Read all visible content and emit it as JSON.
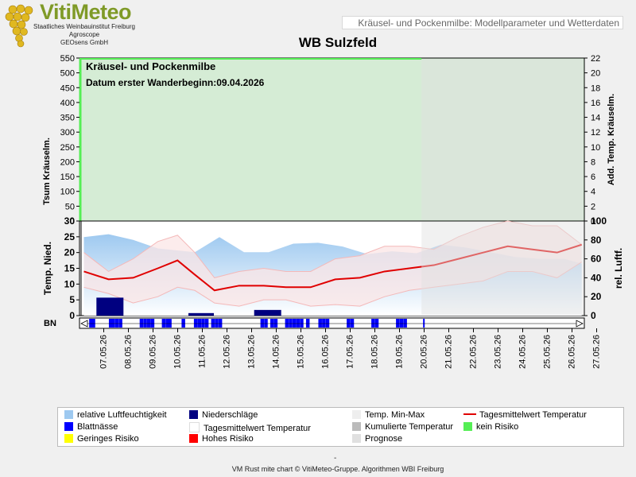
{
  "header": {
    "brand": "VitiMeteo",
    "subtitle_lines": [
      "Staatliches Weinbauinstitut Freiburg",
      "Agroscope",
      "GEOsens GmbH"
    ],
    "box_text": "Kräusel- und Pockenmilbe: Modellparameter und Wetterdaten",
    "station": "WB Sulzfeld"
  },
  "footer": {
    "dash": "-",
    "credit": "VM Rust mite chart © VitiMeteo-Gruppe. Algorithmen WBI Freiburg"
  },
  "colors": {
    "humidity": "#9ec9f0",
    "precip": "#000080",
    "leaf_wet": "#0000ff",
    "temp_mean": "#e00000",
    "temp_band": "#f4b8b8",
    "no_risk": "#55ee55",
    "low_risk": "#ffff00",
    "high_risk": "#ff0000",
    "forecast": "#e0e0e0",
    "cumulative": "#bbbbbb"
  },
  "chart_data": [
    {
      "type": "area",
      "id": "upper",
      "title": "Kräusel- und Pockenmilbe",
      "annotation": "Datum erster Wanderbeginn:09.04.2026",
      "ylabel_left": "Tsum Kräuselm.",
      "ylabel_right": "Add. Temp. Kräuselm.",
      "ylim_left": [
        0,
        550
      ],
      "yticks_left": [
        0,
        50,
        100,
        150,
        200,
        250,
        300,
        350,
        400,
        450,
        500,
        550
      ],
      "ylim_right": [
        0,
        22
      ],
      "yticks_right": [
        0,
        2,
        4,
        6,
        8,
        10,
        12,
        14,
        16,
        18,
        20,
        22
      ],
      "risk": "kein Risiko",
      "background": "#d5ecd5",
      "forecast_from": "20.05.26"
    },
    {
      "type": "line",
      "id": "lower",
      "ylabel_left": "Temp. Nied.",
      "ylabel_right": "rel. Luftf.",
      "ylim_left": [
        0,
        30
      ],
      "yticks_left": [
        0,
        5,
        10,
        15,
        20,
        25,
        30
      ],
      "ylim_right": [
        0,
        100
      ],
      "yticks_right": [
        0,
        20,
        40,
        60,
        80,
        100
      ],
      "bn_label": "BN",
      "categories": [
        "07.05.26",
        "08.05.26",
        "09.05.26",
        "10.05.26",
        "11.05.26",
        "12.05.26",
        "13.05.26",
        "14.05.26",
        "15.05.26",
        "16.05.26",
        "17.05.26",
        "18.05.26",
        "19.05.26",
        "20.05.26",
        "21.05.26",
        "22.05.26",
        "23.05.26",
        "24.05.26",
        "25.05.26",
        "26.05.26",
        "27.05.26"
      ],
      "forecast_start_index": 13.7,
      "series": [
        {
          "name": "Tagesmittelwert Temperatur",
          "x": [
            0,
            1,
            2,
            3,
            3.8,
            4.5,
            5.3,
            6.3,
            7.3,
            8.2,
            9.2,
            10.2,
            11.2,
            12.2,
            13.2,
            14.2,
            15.2,
            16.2,
            17.2,
            18.2,
            19.2,
            20.2
          ],
          "values": [
            14,
            11.5,
            12,
            15,
            17.5,
            13,
            8,
            9.5,
            9.5,
            9,
            9,
            11.5,
            12,
            14,
            15,
            16,
            18,
            20,
            22,
            21,
            20,
            22.5
          ]
        },
        {
          "name": "Temp. Min",
          "x": [
            0,
            1,
            2,
            3,
            3.8,
            4.5,
            5.3,
            6.3,
            7.3,
            8.2,
            9.2,
            10.2,
            11.2,
            12.2,
            13.2,
            14.2,
            15.2,
            16.2,
            17.2,
            18.2,
            19.2,
            20.2
          ],
          "values": [
            9,
            7,
            4,
            6,
            9,
            8,
            4,
            3,
            5,
            5,
            3,
            3.5,
            3,
            6,
            8,
            9,
            10,
            11,
            14,
            14,
            12,
            17
          ]
        },
        {
          "name": "Temp. Max",
          "x": [
            0,
            1,
            2,
            3,
            3.8,
            4.5,
            5.3,
            6.3,
            7.3,
            8.2,
            9.2,
            10.2,
            11.2,
            12.2,
            13.2,
            14.2,
            15.2,
            16.2,
            17.2,
            18.2,
            19.2,
            20.2
          ],
          "values": [
            20,
            14,
            18,
            23.5,
            25.5,
            20,
            12,
            14,
            15,
            14,
            14,
            18,
            19,
            22,
            22,
            21,
            25,
            28,
            30,
            28.5,
            28.5,
            22.5
          ]
        },
        {
          "name": "relative Luftfeuchtigkeit",
          "x": [
            0,
            1,
            2,
            3,
            4.5,
            5.5,
            6.5,
            7.5,
            8.5,
            9.5,
            10.5,
            11.5,
            12.5,
            13.5,
            14.5,
            15.5,
            16.5,
            17.5,
            18.5,
            19.5,
            20.2
          ],
          "values": [
            83,
            86,
            80,
            71,
            67,
            83,
            67,
            67,
            76,
            77,
            73,
            65,
            68,
            66,
            75,
            72,
            67,
            62,
            60,
            60,
            55
          ]
        },
        {
          "name": "Niederschläge",
          "x": [
            0.8,
            4.5,
            7.2
          ],
          "values": [
            5.7,
            0.8,
            1.8
          ]
        }
      ],
      "leaf_wetness_x": [
        0.15,
        0.25,
        0.95,
        1.05,
        1.2,
        1.35,
        2.2,
        2.35,
        2.5,
        2.65,
        3.1,
        3.25,
        3.35,
        3.9,
        4.4,
        4.55,
        4.7,
        4.85,
        5.1,
        5.25,
        5.4,
        7.1,
        7.25,
        7.5,
        7.65,
        8.1,
        8.25,
        8.4,
        8.55,
        8.7,
        8.95,
        9.45,
        9.6,
        9.75,
        10.6,
        10.75,
        11.6,
        11.75,
        12.6,
        12.75,
        12.9,
        13.7
      ],
      "risk_marks": [
        {
          "x": 0.3,
          "risk": "Geringes Risiko"
        },
        {
          "x": 20.3,
          "risk": "Hohes Risiko"
        }
      ]
    }
  ],
  "legend": [
    {
      "label": "relative Luftfeuchtigkeit",
      "kind": "swatch",
      "color": "#9ec9f0"
    },
    {
      "label": "Niederschläge",
      "kind": "swatch",
      "color": "#000080"
    },
    {
      "label": "Temp. Min-Max",
      "kind": "swatch",
      "color": "#eeeeee"
    },
    {
      "label": "Tagesmittelwert Temperatur",
      "kind": "line",
      "color": "#e00000"
    },
    {
      "label": "Blattnässe",
      "kind": "swatch",
      "color": "#0000ff"
    },
    {
      "label": "Tagesmittelwert Temperatur",
      "kind": "swatch",
      "color": "#ffffff"
    },
    {
      "label": "Kumulierte Temperatur",
      "kind": "swatch",
      "color": "#bbbbbb"
    },
    {
      "label": "kein Risiko",
      "kind": "swatch",
      "color": "#55ee55"
    },
    {
      "label": "Geringes Risiko",
      "kind": "swatch",
      "color": "#ffff00"
    },
    {
      "label": "Hohes Risiko",
      "kind": "swatch",
      "color": "#ff0000"
    },
    {
      "label": "Prognose",
      "kind": "swatch",
      "color": "#e0e0e0"
    }
  ]
}
